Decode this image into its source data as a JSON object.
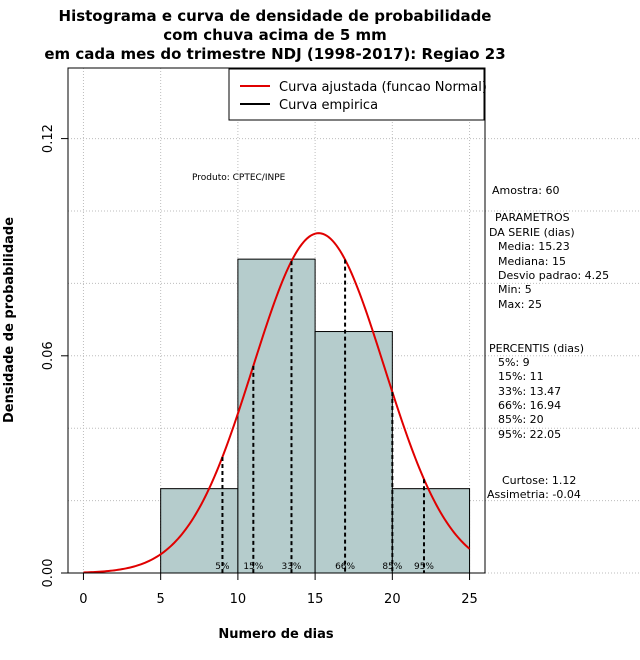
{
  "chart_data": {
    "type": "bar",
    "title_lines": [
      "Histograma e curva de densidade de probabilidade",
      "com chuva acima de 5 mm",
      "em cada mes do trimestre NDJ (1998-2017): Regiao 23"
    ],
    "xlabel": "Numero de dias",
    "ylabel": "Densidade de probabilidade",
    "xlim": [
      -1,
      26
    ],
    "ylim": [
      0,
      0.1395
    ],
    "x_ticks": [
      0,
      5,
      10,
      15,
      20,
      25
    ],
    "x_tick_labels": [
      "0",
      "5",
      "10",
      "15",
      "20",
      "25"
    ],
    "y_ticks": [
      0.0,
      0.06,
      0.12
    ],
    "y_tick_labels": [
      "0.00",
      "0.06",
      "0.12"
    ],
    "bins": [
      {
        "x0": 5,
        "x1": 10,
        "density": 0.0233
      },
      {
        "x0": 10,
        "x1": 15,
        "density": 0.0867
      },
      {
        "x0": 15,
        "x1": 20,
        "density": 0.0667
      },
      {
        "x0": 20,
        "x1": 25,
        "density": 0.0233
      }
    ],
    "bar_color": "#b5cccc",
    "normal_curve": {
      "mean": 15.23,
      "sd": 4.25,
      "x_from": 0,
      "x_to": 25,
      "color": "#e00000"
    },
    "percentile_lines": [
      {
        "label": "5%",
        "x": 9
      },
      {
        "label": "15%",
        "x": 11
      },
      {
        "label": "33%",
        "x": 13.47
      },
      {
        "label": "66%",
        "x": 16.94
      },
      {
        "label": "85%",
        "x": 20
      },
      {
        "label": "95%",
        "x": 22.05
      }
    ],
    "legend": [
      {
        "label": "Curva ajustada (funcao Normal)",
        "color": "#e00000"
      },
      {
        "label": "Curva empirica",
        "color": "#000000"
      }
    ],
    "legend_position": "top-right",
    "grid": true,
    "annotation": "Produto: CPTEC/INPE",
    "side_panel": {
      "sample": "Amostra: 60",
      "params_title_1": "PARAMETROS",
      "params_title_2": "DA SERIE (dias)",
      "params": [
        "Media: 15.23",
        "Mediana: 15",
        "Desvio padrao: 4.25",
        "Min: 5",
        "Max: 25"
      ],
      "percentis_title": "PERCENTIS (dias)",
      "percentis": [
        "5%: 9",
        "15%: 11",
        "33%: 13.47",
        "66%: 16.94",
        "85%: 20",
        "95%: 22.05"
      ],
      "curtose": "Curtose: 1.12",
      "assimetria": "Assimetria: -0.04"
    }
  }
}
